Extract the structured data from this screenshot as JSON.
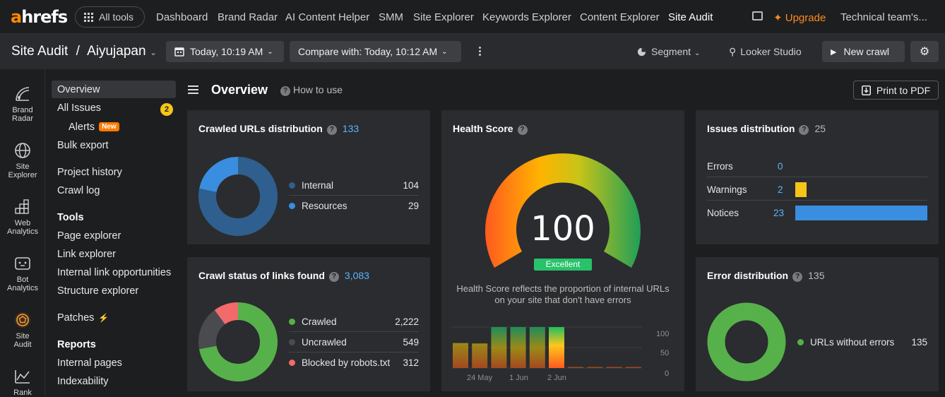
{
  "topnav": {
    "logo_a": "a",
    "logo_rest": "hrefs",
    "all_tools": "All tools",
    "items": [
      "Dashboard",
      "Brand Radar",
      "AI Content Helper",
      "SMM",
      "Site Explorer",
      "Keywords Explorer",
      "Content Explorer",
      "Site Audit"
    ],
    "upgrade": "Upgrade",
    "team": "Technical team's..."
  },
  "subbar": {
    "tool": "Site Audit",
    "separator": "/",
    "project": "Aiyujapan",
    "date_label": "Today, 10:19 AM",
    "compare_label": "Compare with: Today, 10:12 AM",
    "segment": "Segment",
    "looker": "Looker Studio",
    "new_crawl": "New crawl"
  },
  "rail": [
    {
      "label1": "Brand",
      "label2": "Radar"
    },
    {
      "label1": "Site",
      "label2": "Explorer"
    },
    {
      "label1": "Web",
      "label2": "Analytics"
    },
    {
      "label1": "Bot",
      "label2": "Analytics"
    },
    {
      "label1": "Site",
      "label2": "Audit"
    },
    {
      "label1": "Rank",
      "label2": ""
    }
  ],
  "sidebar": {
    "overview": "Overview",
    "all_issues": "All Issues",
    "all_issues_count": "2",
    "alerts": "Alerts",
    "new_badge": "New",
    "bulk_export": "Bulk export",
    "project_history": "Project history",
    "crawl_log": "Crawl log",
    "tools_head": "Tools",
    "page_explorer": "Page explorer",
    "link_explorer": "Link explorer",
    "internal_link_opps": "Internal link opportunities",
    "structure_explorer": "Structure explorer",
    "patches": "Patches",
    "reports_head": "Reports",
    "internal_pages": "Internal pages",
    "indexability": "Indexability"
  },
  "main": {
    "title": "Overview",
    "how_to_use": "How to use",
    "print_pdf": "Print to PDF"
  },
  "crawled_urls": {
    "title": "Crawled URLs distribution",
    "total": "133",
    "items": [
      {
        "label": "Internal",
        "value": "104",
        "num": 104,
        "color": "#2e5f8f"
      },
      {
        "label": "Resources",
        "value": "29",
        "num": 29,
        "color": "#3a8ee0"
      }
    ]
  },
  "crawl_status": {
    "title": "Crawl status of links found",
    "total": "3,083",
    "items": [
      {
        "label": "Crawled",
        "value": "2,222",
        "num": 2222,
        "color": "#57b14b"
      },
      {
        "label": "Uncrawled",
        "value": "549",
        "num": 549,
        "color": "#4a4b4f"
      },
      {
        "label": "Blocked by robots.txt",
        "value": "312",
        "num": 312,
        "color": "#f26a6a"
      }
    ]
  },
  "health": {
    "title": "Health Score",
    "score": "100",
    "rating": "Excellent",
    "description": "Health Score reflects the proportion of internal URLs on your site that don't have errors",
    "y_ticks": [
      "100",
      "50",
      "0"
    ],
    "x_ticks": [
      "24 May",
      "1 Jun",
      "2 Jun"
    ],
    "bars": [
      61,
      60,
      100,
      100,
      100,
      100,
      2,
      2,
      2,
      2
    ]
  },
  "issues": {
    "title": "Issues distribution",
    "total": "25",
    "rows": [
      {
        "label": "Errors",
        "value": "0",
        "num": 0,
        "color": "#e04848"
      },
      {
        "label": "Warnings",
        "value": "2",
        "num": 2,
        "color": "#f5c518"
      },
      {
        "label": "Notices",
        "value": "23",
        "num": 23,
        "color": "#3a8ee0"
      }
    ]
  },
  "errors": {
    "title": "Error distribution",
    "total": "135",
    "items": [
      {
        "label": "URLs without errors",
        "value": "135",
        "color": "#57b14b"
      }
    ]
  }
}
